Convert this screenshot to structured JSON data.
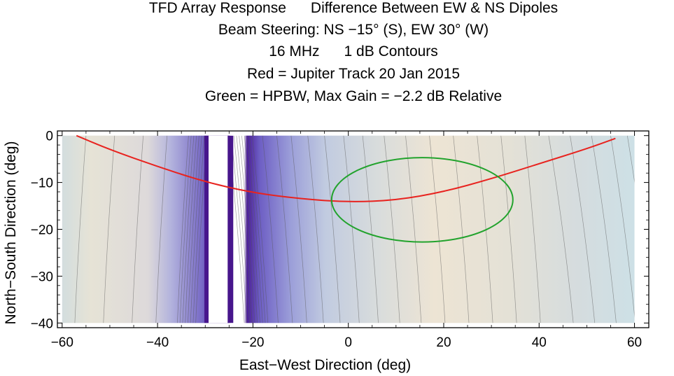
{
  "chart_data": {
    "type": "heatmap",
    "title_lines": [
      "TFD Array Response      Difference Between EW & NS Dipoles",
      "Beam Steering: NS −15° (S), EW 30° (W)",
      "16 MHz      1 dB Contours",
      "Red = Jupiter Track 20 Jan 2015",
      "Green = HPBW, Max Gain = −2.2 dB Relative"
    ],
    "xlabel": "East−West Direction (deg)",
    "ylabel": "North−South Direction (deg)",
    "xlim": [
      -61,
      63
    ],
    "ylim": [
      -41,
      1
    ],
    "x_ticks": [
      -60,
      -40,
      -20,
      0,
      20,
      40,
      60
    ],
    "x_tick_labels": [
      "−60",
      "−40",
      "−20",
      "0",
      "20",
      "40",
      "60"
    ],
    "y_ticks": [
      0,
      -10,
      -20,
      -30,
      -40
    ],
    "y_tick_labels": [
      "0",
      "−10",
      "−20",
      "−30",
      "−40"
    ],
    "data_extent": {
      "x": [
        -60,
        60
      ],
      "y": [
        -40,
        0
      ]
    },
    "null_gap_x": [
      -29.3,
      -25.3
    ],
    "contour_spacing_db": 1,
    "series": [
      {
        "name": "Red = Jupiter Track 20 Jan 2015",
        "color": "#e8231f",
        "kind": "line",
        "points": [
          [
            -57,
            0
          ],
          [
            -50,
            -3
          ],
          [
            -40,
            -6.6
          ],
          [
            -30,
            -9.9
          ],
          [
            -20,
            -12.2
          ],
          [
            -10,
            -13.5
          ],
          [
            0,
            -14.2
          ],
          [
            10,
            -13.8
          ],
          [
            20,
            -12
          ],
          [
            30,
            -9.2
          ],
          [
            40,
            -6
          ],
          [
            50,
            -2.8
          ],
          [
            56,
            -0.6
          ]
        ]
      },
      {
        "name": "Green = HPBW, Max Gain = −2.2 dB Relative",
        "color": "#22a32d",
        "kind": "ellipse",
        "center": [
          15.5,
          -13.7
        ],
        "radii": [
          19,
          9
        ]
      }
    ],
    "colors": {
      "low": "#47168c",
      "mid": "#a9acd9",
      "peak": "#f0e6d6",
      "edge": "#cde0e6",
      "contour": "#555555",
      "frame": "#000000"
    }
  }
}
